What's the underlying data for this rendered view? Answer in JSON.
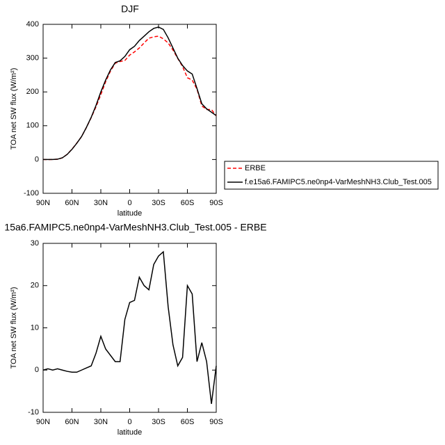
{
  "chart_data": [
    {
      "type": "line",
      "title": "DJF",
      "xlabel": "latitude",
      "ylabel": "TOA net SW flux (W/m²)",
      "x": [
        90,
        85,
        80,
        75,
        70,
        65,
        60,
        55,
        50,
        45,
        40,
        35,
        30,
        25,
        20,
        15,
        10,
        5,
        0,
        -5,
        -10,
        -15,
        -20,
        -25,
        -30,
        -35,
        -40,
        -45,
        -50,
        -55,
        -60,
        -65,
        -70,
        -75,
        -80,
        -85,
        -90
      ],
      "series": [
        {
          "name": "ERBE",
          "color": "#ff0000",
          "linestyle": "dashed",
          "values": [
            0,
            -0.3,
            0,
            0.7,
            5,
            15.3,
            30.5,
            48.5,
            68,
            94.5,
            124,
            156,
            192,
            230,
            261.5,
            285,
            290,
            293,
            309,
            318.5,
            330,
            345,
            359,
            363,
            365,
            357,
            345,
            324,
            299,
            275,
            242,
            235,
            208,
            158.5,
            148,
            148,
            129
          ]
        },
        {
          "name": "f.e15a6.FAMIPC5.ne0np4-VarMeshNH3.Club_Test.005",
          "color": "#000000",
          "linestyle": "solid",
          "values": [
            0,
            0,
            0,
            1,
            5,
            15,
            30,
            48,
            68,
            95,
            125,
            160,
            200,
            235,
            265,
            287,
            292,
            305,
            325,
            335,
            352,
            365,
            378,
            388,
            392,
            385,
            360,
            330,
            300,
            278,
            262,
            253,
            210,
            165,
            150,
            140,
            130
          ]
        }
      ],
      "xlim": [
        90,
        -90
      ],
      "xticks": [
        {
          "value": 90,
          "label": "90N"
        },
        {
          "value": 60,
          "label": "60N"
        },
        {
          "value": 30,
          "label": "30N"
        },
        0,
        {
          "value": -30,
          "label": "30S"
        },
        {
          "value": -60,
          "label": "60S"
        },
        {
          "value": -90,
          "label": "90S"
        }
      ],
      "ylim": [
        -100,
        400
      ],
      "yticks": [
        -100,
        0,
        100,
        200,
        300,
        400
      ],
      "legend": "right"
    },
    {
      "type": "line",
      "title": "15a6.FAMIPC5.ne0np4-VarMeshNH3.Club_Test.005 - ERBE",
      "xlabel": "latitude",
      "ylabel": "TOA net SW flux (W/m²)",
      "x": [
        90,
        85,
        80,
        75,
        70,
        65,
        60,
        55,
        50,
        45,
        40,
        35,
        30,
        25,
        20,
        15,
        10,
        5,
        0,
        -5,
        -10,
        -15,
        -20,
        -25,
        -30,
        -35,
        -40,
        -45,
        -50,
        -55,
        -60,
        -65,
        -70,
        -75,
        -80,
        -85,
        -90
      ],
      "series": [
        {
          "color": "#000000",
          "linestyle": "solid",
          "values": [
            0,
            0.3,
            0,
            0.3,
            0,
            -0.3,
            -0.5,
            -0.5,
            0,
            0.5,
            1,
            4,
            8,
            5,
            3.5,
            2,
            2,
            12,
            16,
            16.5,
            22,
            20,
            19,
            25,
            27,
            28,
            15,
            6,
            1,
            3,
            20,
            18,
            2,
            6.5,
            2,
            -8,
            1
          ]
        }
      ],
      "xlim": [
        90,
        -90
      ],
      "xticks": [
        {
          "value": 90,
          "label": "90N"
        },
        {
          "value": 60,
          "label": "60N"
        },
        {
          "value": 30,
          "label": "30N"
        },
        0,
        {
          "value": -30,
          "label": "30S"
        },
        {
          "value": -60,
          "label": "60S"
        },
        {
          "value": -90,
          "label": "90S"
        }
      ],
      "ylim": [
        -10,
        30
      ],
      "yticks": [
        -10,
        0,
        10,
        20,
        30
      ]
    }
  ]
}
